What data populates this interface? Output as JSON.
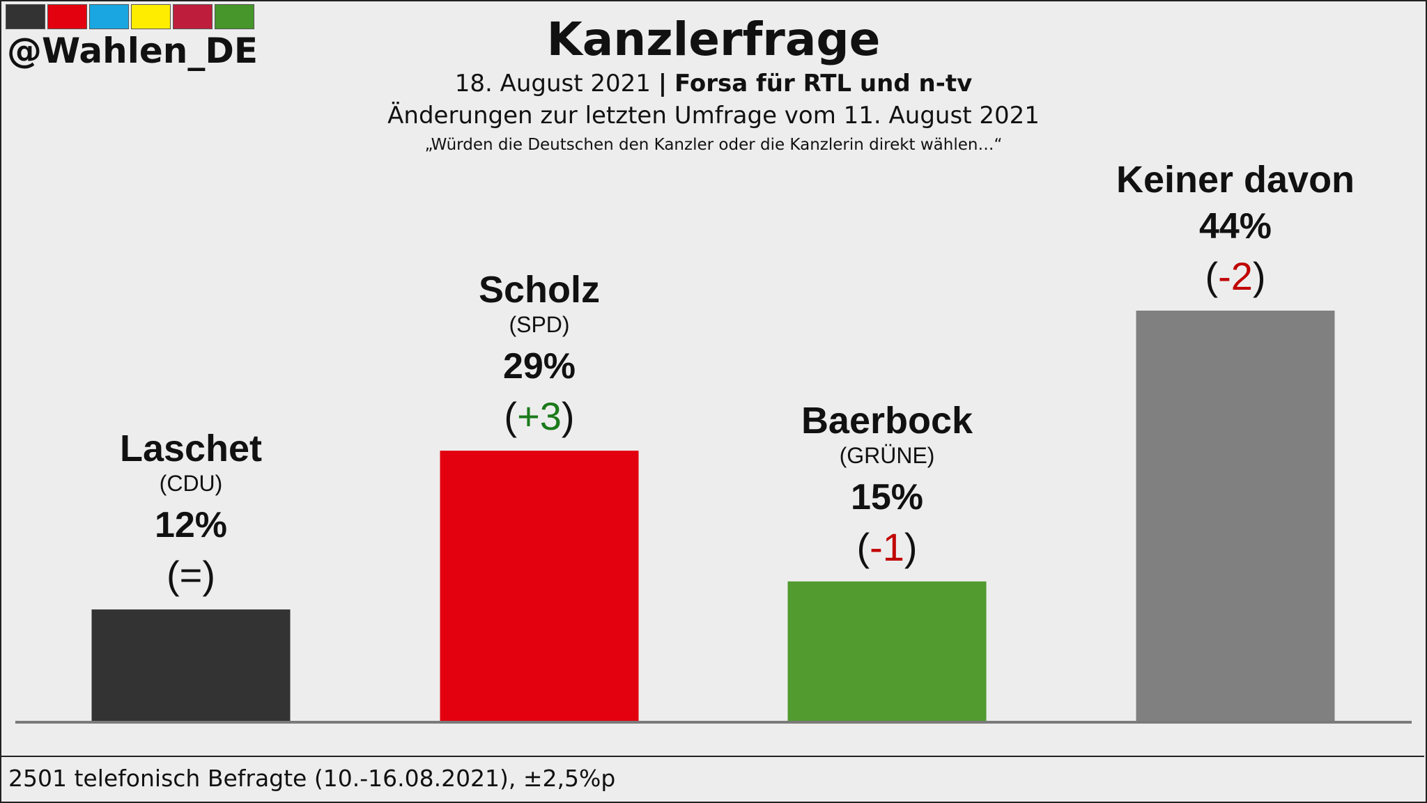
{
  "header": {
    "handle": "@Wahlen_DE",
    "title": "Kanzlerfrage",
    "date": "18. August 2021",
    "separator": "|",
    "source": "Forsa für RTL und n-tv",
    "changes_note": "Änderungen zur letzten Umfrage vom 11. August 2021",
    "question": "„Würden die Deutschen den Kanzler oder die Kanzlerin direkt wählen…“"
  },
  "logo_colors": [
    "#333333",
    "#e3000f",
    "#1aa6e0",
    "#ffed00",
    "#be1e3c",
    "#46962b"
  ],
  "footer": {
    "note": "2501 telefonisch Befragte (10.-16.08.2021), ±2,5%p"
  },
  "chart_data": {
    "type": "bar",
    "title": "Kanzlerfrage",
    "categories": [
      "Laschet",
      "Scholz",
      "Baerbock",
      "Keiner davon"
    ],
    "parties": [
      "(CDU)",
      "(SPD)",
      "(GRÜNE)",
      ""
    ],
    "values": [
      12,
      29,
      15,
      44
    ],
    "value_labels": [
      "12%",
      "29%",
      "15%",
      "44%"
    ],
    "changes": [
      "=",
      "+3",
      "-1",
      "-2"
    ],
    "change_colors": [
      "#111111",
      "#1a7a1a",
      "#c00000",
      "#c00000"
    ],
    "colors": [
      "#333333",
      "#e3000f",
      "#519b2f",
      "#808080"
    ],
    "ylim": [
      0,
      44
    ],
    "grid": false,
    "legend": "none"
  }
}
